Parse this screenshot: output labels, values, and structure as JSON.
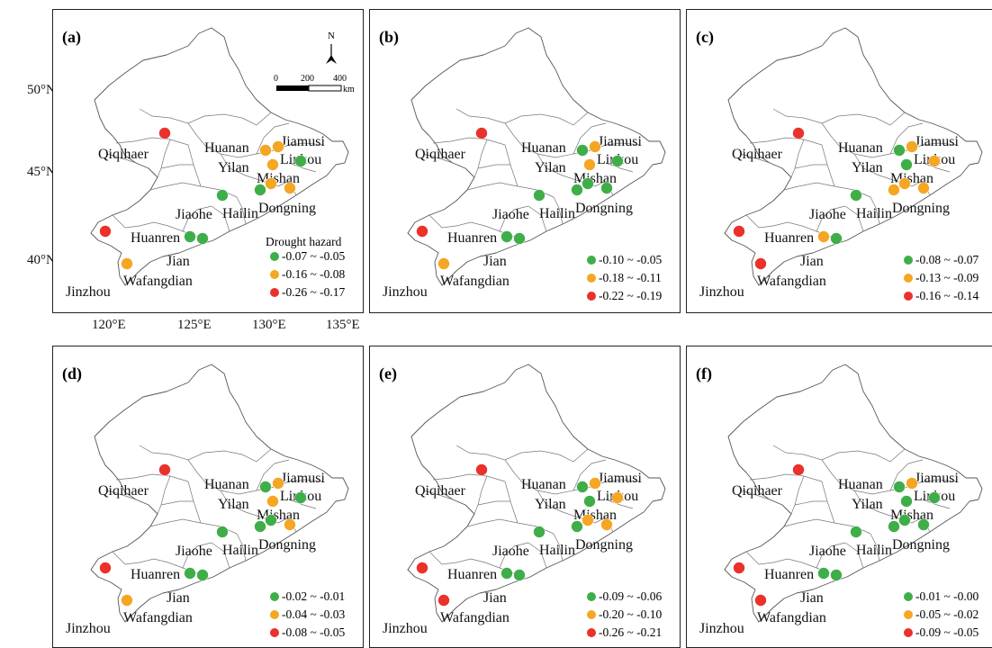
{
  "legend_title": "Drought hazard",
  "axes": {
    "lat_ticks": [
      "50°N",
      "45°N",
      "40°N"
    ],
    "lon_ticks": [
      "120°E",
      "125°E",
      "130°E",
      "135°E"
    ]
  },
  "scalebar": {
    "labels": [
      "0",
      "200",
      "400"
    ],
    "unit": "km"
  },
  "north_label": "N",
  "stations": {
    "qiqihaer": "Qiqihaer",
    "huanan": "Huanan",
    "jiamusi": "Jiamusi",
    "yilan": "Yilan",
    "linkou": "Linkou",
    "mishan": "Mishan",
    "jiaohe": "Jiaohe",
    "hailin": "Hailin",
    "dongning": "Dongning",
    "huanren": "Huanren",
    "jian": "Jian",
    "wafangdian": "Wafangdian",
    "jinzhou": "Jinzhou"
  },
  "colors": {
    "green": "#3fae49",
    "orange": "#f5a623",
    "red": "#e8322b"
  },
  "panels": [
    {
      "label": "(a)",
      "legend": [
        "-0.07 ~ -0.05",
        "-0.16 ~ -0.08",
        "-0.26 ~ -0.17"
      ],
      "station_class": {
        "qiqihaer": "red",
        "huanan": "orange",
        "jiamusi": "orange",
        "yilan": "orange",
        "linkou": "green",
        "mishan": "orange",
        "jiaohe": "green",
        "hailin": "green",
        "dongning": "orange",
        "huanren": "green",
        "jian": "green",
        "wafangdian": "orange",
        "jinzhou": "red"
      }
    },
    {
      "label": "(b)",
      "legend": [
        "-0.10 ~ -0.05",
        "-0.18 ~ -0.11",
        "-0.22 ~ -0.19"
      ],
      "station_class": {
        "qiqihaer": "red",
        "huanan": "green",
        "jiamusi": "orange",
        "yilan": "orange",
        "linkou": "green",
        "mishan": "green",
        "jiaohe": "green",
        "hailin": "green",
        "dongning": "green",
        "huanren": "green",
        "jian": "green",
        "wafangdian": "orange",
        "jinzhou": "red"
      }
    },
    {
      "label": "(c)",
      "legend": [
        "-0.08 ~ -0.07",
        "-0.13 ~ -0.09",
        "-0.16 ~ -0.14"
      ],
      "station_class": {
        "qiqihaer": "red",
        "huanan": "green",
        "jiamusi": "orange",
        "yilan": "green",
        "linkou": "orange",
        "mishan": "orange",
        "jiaohe": "green",
        "hailin": "orange",
        "dongning": "orange",
        "huanren": "orange",
        "jian": "green",
        "wafangdian": "red",
        "jinzhou": "red"
      }
    },
    {
      "label": "(d)",
      "legend": [
        "-0.02 ~ -0.01",
        "-0.04 ~ -0.03",
        "-0.08 ~ -0.05"
      ],
      "station_class": {
        "qiqihaer": "red",
        "huanan": "green",
        "jiamusi": "orange",
        "yilan": "orange",
        "linkou": "green",
        "mishan": "green",
        "jiaohe": "green",
        "hailin": "green",
        "dongning": "orange",
        "huanren": "green",
        "jian": "green",
        "wafangdian": "orange",
        "jinzhou": "red"
      }
    },
    {
      "label": "(e)",
      "legend": [
        "-0.09 ~ -0.06",
        "-0.20 ~ -0.10",
        "-0.26 ~ -0.21"
      ],
      "station_class": {
        "qiqihaer": "red",
        "huanan": "green",
        "jiamusi": "orange",
        "yilan": "green",
        "linkou": "orange",
        "mishan": "orange",
        "jiaohe": "green",
        "hailin": "green",
        "dongning": "orange",
        "huanren": "green",
        "jian": "green",
        "wafangdian": "red",
        "jinzhou": "red"
      }
    },
    {
      "label": "(f)",
      "legend": [
        "-0.01 ~ -0.00",
        "-0.05 ~ -0.02",
        "-0.09 ~ -0.05"
      ],
      "station_class": {
        "qiqihaer": "red",
        "huanan": "green",
        "jiamusi": "orange",
        "yilan": "green",
        "linkou": "green",
        "mishan": "green",
        "jiaohe": "green",
        "hailin": "green",
        "dongning": "green",
        "huanren": "green",
        "jian": "green",
        "wafangdian": "red",
        "jinzhou": "red"
      }
    }
  ]
}
